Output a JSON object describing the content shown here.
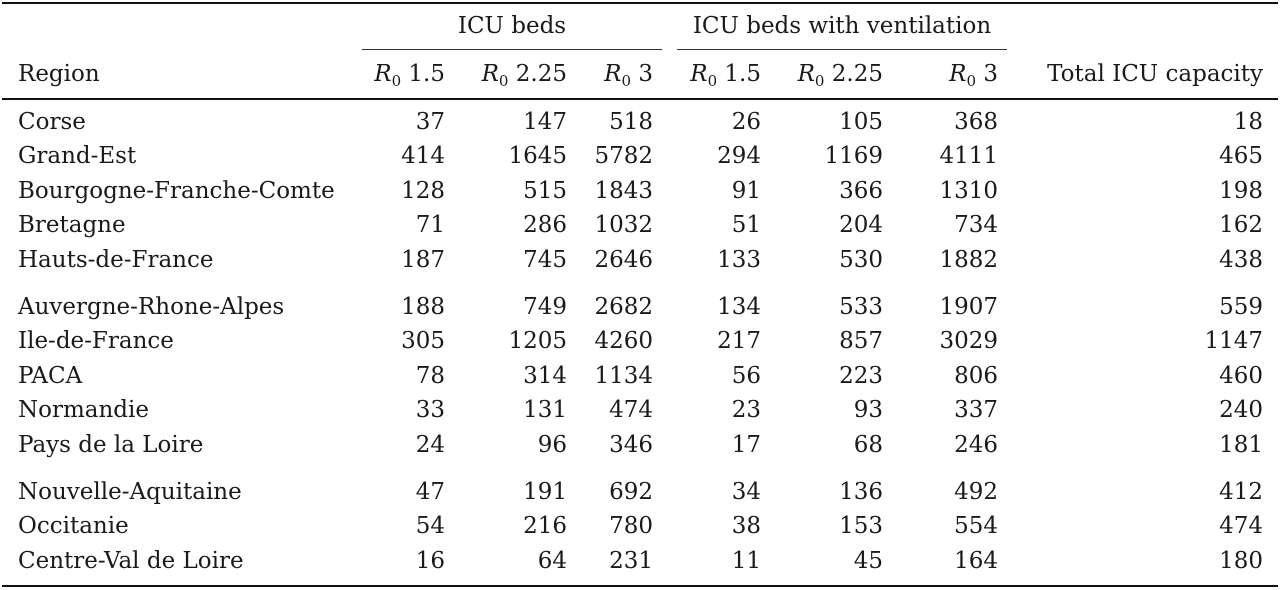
{
  "table": {
    "group_headers": [
      "ICU beds",
      "ICU beds with ventilation"
    ],
    "headers": {
      "region": "Region",
      "r_symbol": "R",
      "r_subscript": "0",
      "r_values": [
        "1.5",
        "2.25",
        "3",
        "1.5",
        "2.25",
        "3"
      ],
      "total": "Total ICU capacity"
    },
    "groups": [
      [
        [
          "Corse",
          "37",
          "147",
          "518",
          "26",
          "105",
          "368",
          "18"
        ],
        [
          "Grand-Est",
          "414",
          "1645",
          "5782",
          "294",
          "1169",
          "4111",
          "465"
        ],
        [
          "Bourgogne-Franche-Comte",
          "128",
          "515",
          "1843",
          "91",
          "366",
          "1310",
          "198"
        ],
        [
          "Bretagne",
          "71",
          "286",
          "1032",
          "51",
          "204",
          "734",
          "162"
        ],
        [
          "Hauts-de-France",
          "187",
          "745",
          "2646",
          "133",
          "530",
          "1882",
          "438"
        ]
      ],
      [
        [
          "Auvergne-Rhone-Alpes",
          "188",
          "749",
          "2682",
          "134",
          "533",
          "1907",
          "559"
        ],
        [
          "Ile-de-France",
          "305",
          "1205",
          "4260",
          "217",
          "857",
          "3029",
          "1147"
        ],
        [
          "PACA",
          "78",
          "314",
          "1134",
          "56",
          "223",
          "806",
          "460"
        ],
        [
          "Normandie",
          "33",
          "131",
          "474",
          "23",
          "93",
          "337",
          "240"
        ],
        [
          "Pays de la Loire",
          "24",
          "96",
          "346",
          "17",
          "68",
          "246",
          "181"
        ]
      ],
      [
        [
          "Nouvelle-Aquitaine",
          "47",
          "191",
          "692",
          "34",
          "136",
          "492",
          "412"
        ],
        [
          "Occitanie",
          "54",
          "216",
          "780",
          "38",
          "153",
          "554",
          "474"
        ],
        [
          "Centre-Val de Loire",
          "16",
          "64",
          "231",
          "11",
          "45",
          "164",
          "180"
        ]
      ]
    ]
  }
}
